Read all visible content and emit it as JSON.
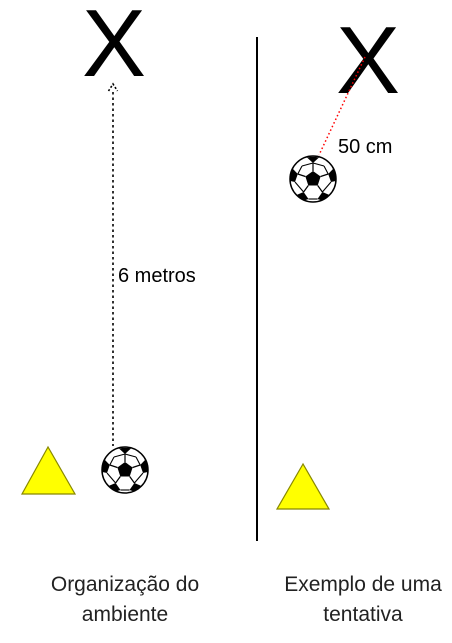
{
  "left_panel": {
    "target_marker": "X",
    "distance_label": "6 metros",
    "caption_line1": "Organização do",
    "caption_line2": "ambiente"
  },
  "right_panel": {
    "target_marker": "X",
    "distance_label": "50 cm",
    "caption_line1": "Exemplo de uma",
    "caption_line2": "tentativa"
  },
  "colors": {
    "cone_fill": "#ffff00",
    "cone_stroke": "#888800",
    "dotted_red": "#ff0000",
    "line": "#000000"
  }
}
